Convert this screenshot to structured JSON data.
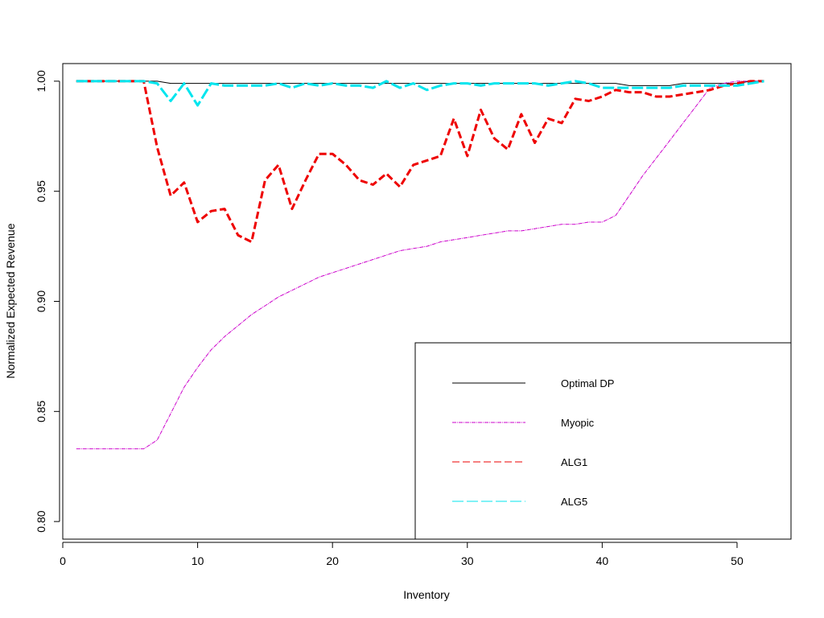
{
  "chart_data": {
    "type": "line",
    "title": "",
    "xlabel": "Inventory",
    "ylabel": "Normalized Expected Revenue",
    "xlim": [
      0,
      54
    ],
    "ylim": [
      0.792,
      1.008
    ],
    "x_ticks": [
      0,
      10,
      20,
      30,
      40,
      50
    ],
    "y_ticks": [
      0.8,
      0.85,
      0.9,
      0.95,
      1.0
    ],
    "x_tick_labels": [
      "0",
      "10",
      "20",
      "30",
      "40",
      "50"
    ],
    "y_tick_labels": [
      "0.80",
      "0.85",
      "0.90",
      "0.95",
      "1.00"
    ],
    "grid": false,
    "legend_position": "bottom-right",
    "x": [
      1,
      2,
      3,
      4,
      5,
      6,
      7,
      8,
      9,
      10,
      11,
      12,
      13,
      14,
      15,
      16,
      17,
      18,
      19,
      20,
      21,
      22,
      23,
      24,
      25,
      26,
      27,
      28,
      29,
      30,
      31,
      32,
      33,
      34,
      35,
      36,
      37,
      38,
      39,
      40,
      41,
      42,
      43,
      44,
      45,
      46,
      47,
      48,
      49,
      50,
      51,
      52
    ],
    "series": [
      {
        "name": "Optimal DP",
        "color": "#000000",
        "dash": "",
        "width": 1,
        "values": [
          1.0,
          1.0,
          1.0,
          1.0,
          1.0,
          1.0,
          1.0,
          0.999,
          0.999,
          0.999,
          0.999,
          0.999,
          0.999,
          0.999,
          0.999,
          0.999,
          0.999,
          0.999,
          0.999,
          0.999,
          0.999,
          0.999,
          0.999,
          0.999,
          0.999,
          0.999,
          0.999,
          0.999,
          0.999,
          0.999,
          0.999,
          0.999,
          0.999,
          0.999,
          0.999,
          0.999,
          0.999,
          0.999,
          0.999,
          0.999,
          0.999,
          0.998,
          0.998,
          0.998,
          0.998,
          0.999,
          0.999,
          0.999,
          0.999,
          0.999,
          1.0,
          1.0
        ]
      },
      {
        "name": "Myopic",
        "color": "#cc00cc",
        "dash": "5 1 1 1",
        "width": 1,
        "values": [
          0.833,
          0.833,
          0.833,
          0.833,
          0.833,
          0.833,
          0.837,
          0.849,
          0.861,
          0.87,
          0.878,
          0.884,
          0.889,
          0.894,
          0.898,
          0.902,
          0.905,
          0.908,
          0.911,
          0.913,
          0.915,
          0.917,
          0.919,
          0.921,
          0.923,
          0.924,
          0.925,
          0.927,
          0.928,
          0.929,
          0.93,
          0.931,
          0.932,
          0.932,
          0.933,
          0.934,
          0.935,
          0.935,
          0.936,
          0.936,
          0.939,
          0.948,
          0.957,
          0.965,
          0.973,
          0.981,
          0.989,
          0.997,
          0.999,
          1.0,
          1.0,
          1.0
        ]
      },
      {
        "name": "ALG1",
        "color": "#ee0000",
        "dash": "9 4",
        "width": 3,
        "values": [
          1.0,
          1.0,
          1.0,
          1.0,
          1.0,
          1.0,
          0.97,
          0.948,
          0.954,
          0.936,
          0.941,
          0.942,
          0.93,
          0.927,
          0.955,
          0.962,
          0.942,
          0.955,
          0.967,
          0.967,
          0.962,
          0.955,
          0.953,
          0.958,
          0.952,
          0.962,
          0.964,
          0.966,
          0.983,
          0.966,
          0.987,
          0.974,
          0.969,
          0.985,
          0.972,
          0.983,
          0.981,
          0.992,
          0.991,
          0.993,
          0.996,
          0.995,
          0.995,
          0.993,
          0.993,
          0.994,
          0.995,
          0.996,
          0.998,
          0.999,
          1.0,
          1.0
        ]
      },
      {
        "name": "ALG5",
        "color": "#00e5ee",
        "dash": "14 4",
        "width": 3,
        "values": [
          1.0,
          1.0,
          1.0,
          1.0,
          1.0,
          1.0,
          0.999,
          0.991,
          0.999,
          0.989,
          0.999,
          0.998,
          0.998,
          0.998,
          0.998,
          0.999,
          0.997,
          0.999,
          0.998,
          0.999,
          0.998,
          0.998,
          0.997,
          1.0,
          0.997,
          0.999,
          0.996,
          0.998,
          0.999,
          0.999,
          0.998,
          0.999,
          0.999,
          0.999,
          0.999,
          0.998,
          0.999,
          1.0,
          0.999,
          0.997,
          0.997,
          0.997,
          0.997,
          0.997,
          0.997,
          0.998,
          0.998,
          0.998,
          0.998,
          0.998,
          0.999,
          1.0
        ]
      }
    ]
  }
}
